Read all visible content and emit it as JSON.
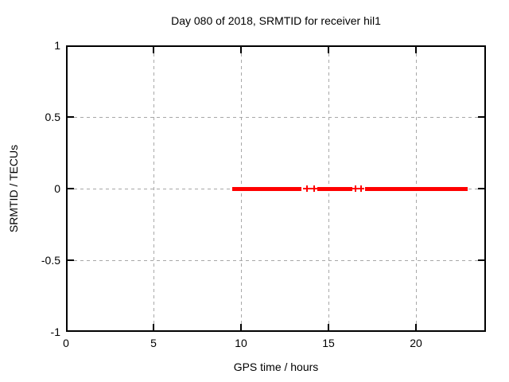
{
  "chart_data": {
    "type": "scatter",
    "title": "Day 080 of 2018, SRMTID for receiver hil1",
    "xlabel": "GPS time / hours",
    "ylabel": "SRMTID / TECUs",
    "xlim": [
      0,
      24
    ],
    "ylim": [
      -1,
      1
    ],
    "xticks": [
      0,
      5,
      10,
      15,
      20
    ],
    "yticks": [
      -1,
      -0.5,
      0,
      0.5,
      1
    ],
    "grid": true,
    "legend": "none",
    "colors": {
      "series": "#ff0000",
      "grid": "#a8a8a8",
      "border": "#000000",
      "background": "#ffffff"
    },
    "series": [
      {
        "name": "SRMTID",
        "marker": "plus",
        "color": "#ff0000",
        "y_value": 0,
        "segments_hours": [
          [
            9.4,
            13.35
          ],
          [
            14.25,
            16.25
          ],
          [
            16.98,
            22.85
          ]
        ],
        "isolated_points_hours": [
          13.66,
          14.07,
          16.47,
          16.77
        ]
      }
    ]
  }
}
